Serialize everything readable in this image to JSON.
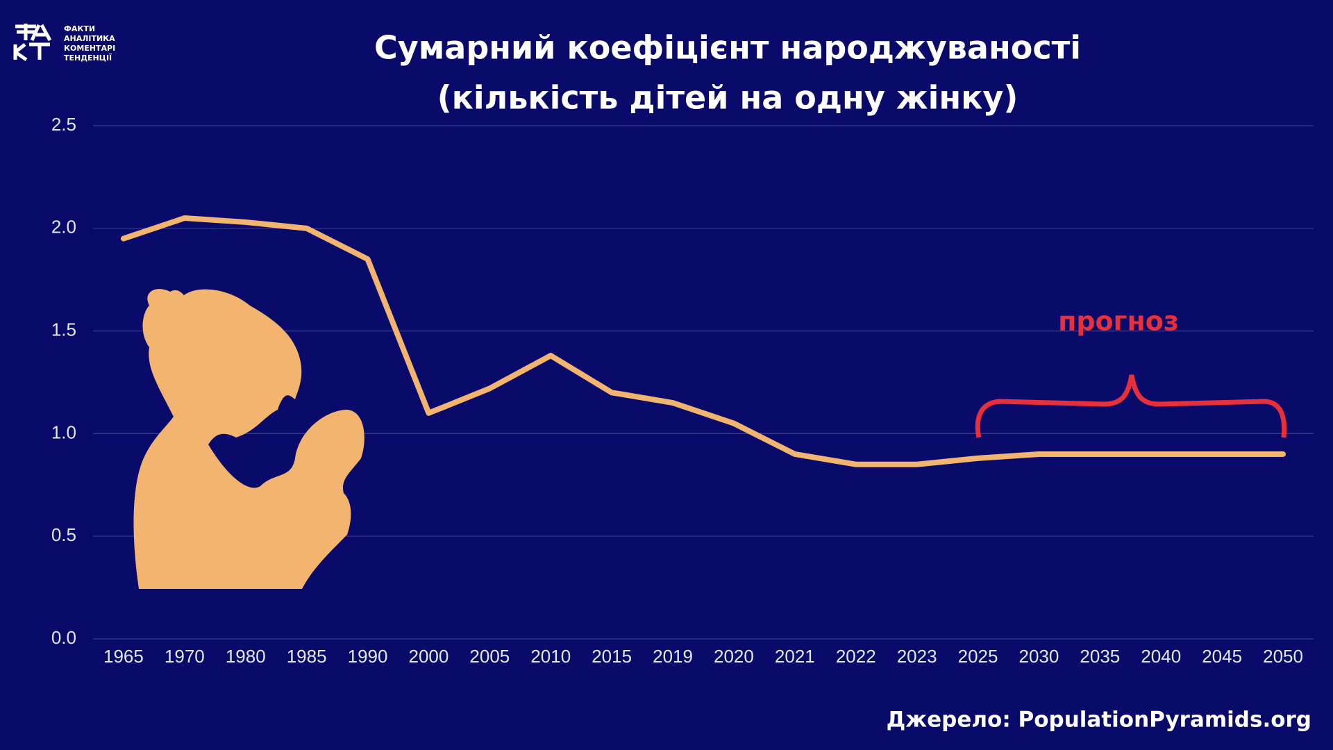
{
  "logo": {
    "lines": [
      "ФАКТИ",
      "АНАЛІТИКА",
      "КОМЕНТАРІ",
      "ТЕНДЕНЦІЇ"
    ]
  },
  "chart_data": {
    "type": "line",
    "title": "Сумарний коефіцієнт народжуваності",
    "subtitle": "(кількість дітей на одну жінку)",
    "categories": [
      "1965",
      "1970",
      "1980",
      "1985",
      "1990",
      "2000",
      "2005",
      "2010",
      "2015",
      "2019",
      "2020",
      "2021",
      "2022",
      "2023",
      "2025",
      "2030",
      "2035",
      "2040",
      "2045",
      "2050"
    ],
    "series": [
      {
        "name": "Сумарний коефіцієнт народжуваності",
        "color": "#f2b46e",
        "values": [
          1.95,
          2.05,
          2.03,
          2.0,
          1.85,
          1.1,
          1.22,
          1.38,
          1.2,
          1.15,
          1.05,
          0.9,
          0.85,
          0.85,
          0.88,
          0.9,
          0.9,
          0.9,
          0.9,
          0.9
        ]
      }
    ],
    "ylim": [
      0,
      2.5
    ],
    "yticks": [
      {
        "value": 0,
        "label": "0.0"
      },
      0.5,
      {
        "value": 1,
        "label": "1.0"
      },
      1.5,
      {
        "value": 2,
        "label": "2.0"
      },
      2.5
    ],
    "grid": true,
    "annotation": "прогноз",
    "annotation_color": "#e8303a",
    "source": "Джерело: PopulationPyramids.org"
  }
}
